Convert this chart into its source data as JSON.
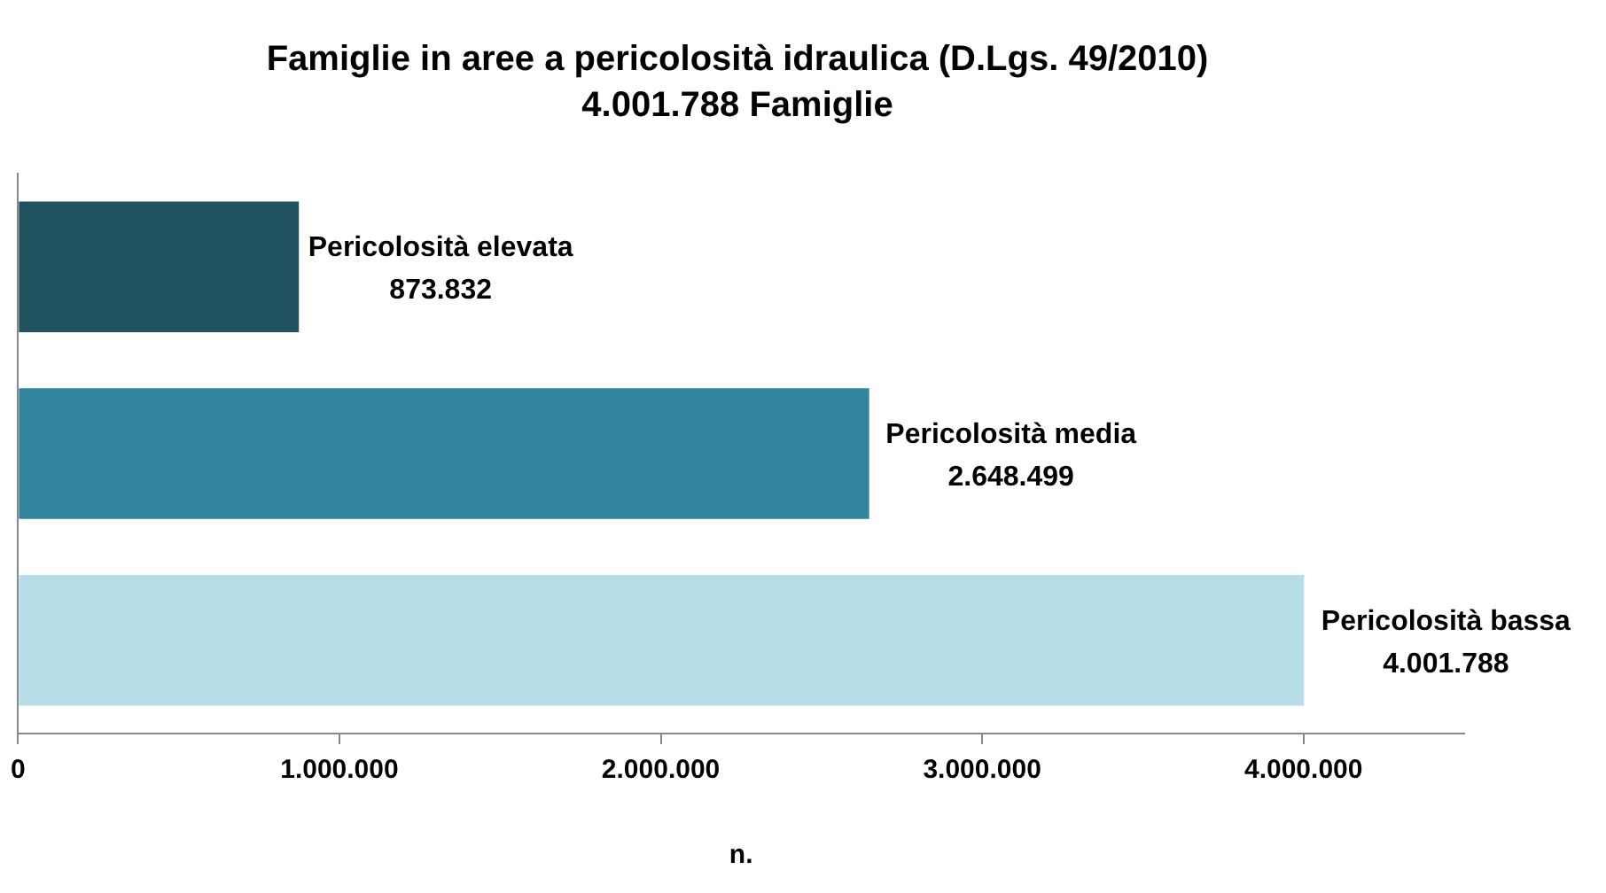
{
  "chart_data": {
    "type": "bar",
    "orientation": "horizontal",
    "title": "Famiglie in aree a pericolosità idraulica (D.Lgs. 49/2010)",
    "subtitle": "4.001.788 Famiglie",
    "xlabel": "n.",
    "categories": [
      "Pericolosità elevata",
      "Pericolosità media",
      "Pericolosità bassa"
    ],
    "values": [
      873832,
      2648499,
      4001788
    ],
    "colors": [
      "#20535f",
      "#31849b",
      "#b7dde8"
    ],
    "value_labels": [
      "873.832",
      "2.648.499",
      "4.001.788"
    ],
    "xlim": [
      0,
      4500000
    ],
    "xticks": [
      0,
      {
        "value": 1000000,
        "label": "1.000.000"
      },
      {
        "value": 2000000,
        "label": "2.000.000"
      },
      {
        "value": 3000000,
        "label": "3.000.000"
      },
      {
        "value": 4000000,
        "label": "4.000.000"
      }
    ],
    "grid": false,
    "legend": false,
    "tick_labels": "x"
  }
}
